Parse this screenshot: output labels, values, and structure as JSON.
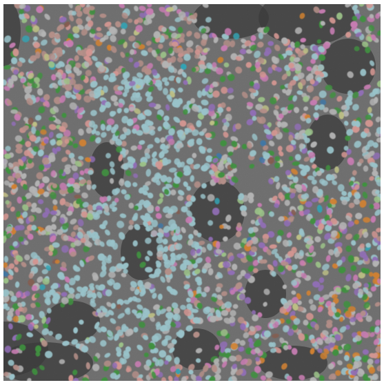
{
  "image": {
    "kind": "segmented-cell-overlay",
    "background_color": "#6e6e6e",
    "dark_region_color": "#2a2a2a",
    "label_colors": [
      {
        "name": "light-blue",
        "hex": "#a6dde6"
      },
      {
        "name": "light-gray",
        "hex": "#c8c8c8"
      },
      {
        "name": "rose-brown",
        "hex": "#c9988f"
      },
      {
        "name": "pink",
        "hex": "#e27fc6"
      },
      {
        "name": "salmon",
        "hex": "#f2a19b"
      },
      {
        "name": "green",
        "hex": "#2f9b2f"
      },
      {
        "name": "purple",
        "hex": "#9a6ccb"
      },
      {
        "name": "orange",
        "hex": "#f0861b"
      },
      {
        "name": "light-green",
        "hex": "#a9dc8f"
      },
      {
        "name": "yellow-green",
        "hex": "#d5d98b"
      },
      {
        "name": "teal",
        "hex": "#1db3c9"
      },
      {
        "name": "brown",
        "hex": "#8a5544"
      },
      {
        "name": "steel-blue",
        "hex": "#2f79b8"
      }
    ]
  }
}
